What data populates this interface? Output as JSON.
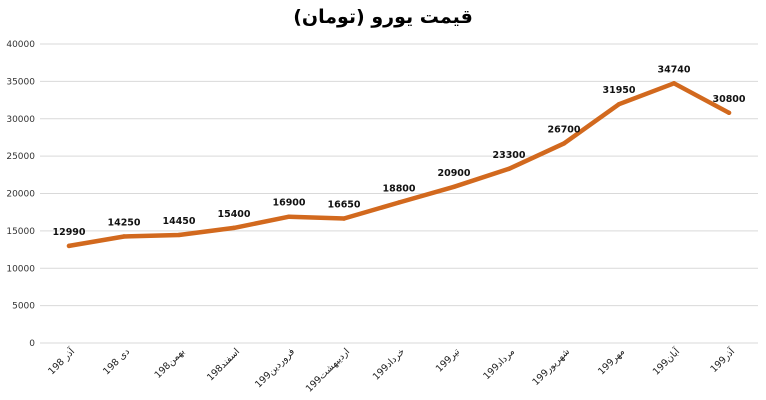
{
  "colors": {
    "line": "#D2691E",
    "grid": "#d9d9d9",
    "background": "#ffffff"
  },
  "chart_data": {
    "type": "line",
    "title": "قیمت یورو (تومان)",
    "xlabel": "",
    "ylabel": "",
    "ylim": [
      0,
      40000
    ],
    "yticks": [
      0,
      5000,
      10000,
      15000,
      20000,
      25000,
      30000,
      35000,
      40000
    ],
    "grid": true,
    "legend": "none",
    "categories": [
      "1آذر 98",
      "1دی 98",
      "1بهمن98",
      "1اسفند98",
      "1فروردین99",
      "1اردیبهشت99",
      "1خرداد99",
      "1تیر99",
      "1مرداد99",
      "1شهریور99",
      "1مهر99",
      "1آبان99",
      "1آذر99"
    ],
    "series": [
      {
        "values": [
          12990,
          14250,
          14450,
          15400,
          16900,
          16650,
          18800,
          20900,
          23300,
          26700,
          31950,
          34740,
          30800
        ]
      }
    ]
  }
}
